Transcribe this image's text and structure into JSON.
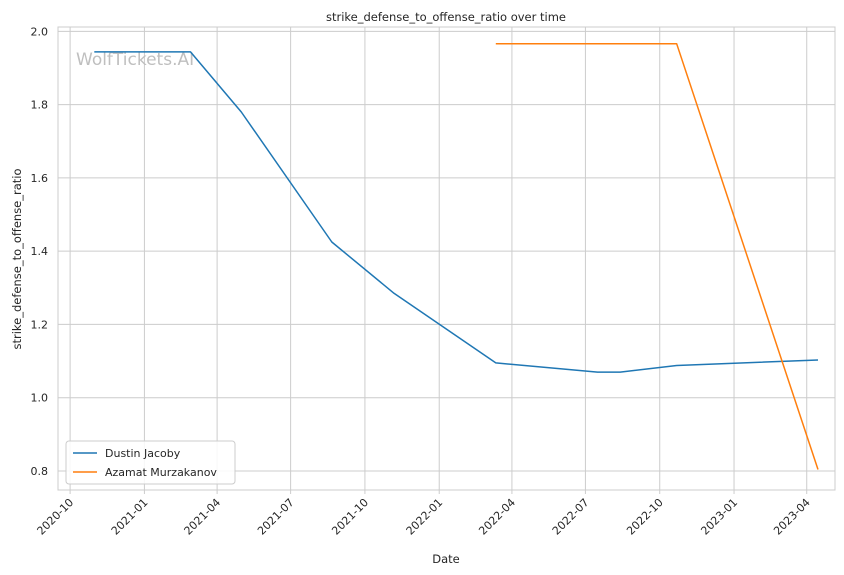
{
  "chart_data": {
    "type": "line",
    "title": "strike_defense_to_offense_ratio over time",
    "xlabel": "Date",
    "ylabel": "strike_defense_to_offense_ratio",
    "watermark": "WolfTickets.AI",
    "xlim": [
      "2020-09-16",
      "2023-05-06"
    ],
    "ylim": [
      0.748,
      2.012
    ],
    "grid": true,
    "legend_position": "lower-left",
    "x_ticks": [
      "2020-10",
      "2021-01",
      "2021-04",
      "2021-07",
      "2021-10",
      "2022-01",
      "2022-04",
      "2022-07",
      "2022-10",
      "2023-01",
      "2023-04"
    ],
    "y_ticks": [
      0.8,
      1.0,
      1.2,
      1.4,
      1.6,
      1.8,
      2.0
    ],
    "series": [
      {
        "name": "Dustin Jacoby",
        "color": "#1f77b4",
        "x": [
          "2020-10-31",
          "2021-02-27",
          "2021-05-01",
          "2021-08-21",
          "2021-11-06",
          "2022-03-12",
          "2022-07-16",
          "2022-08-13",
          "2022-10-22",
          "2023-04-15"
        ],
        "y": [
          1.944,
          1.944,
          1.78,
          1.425,
          1.285,
          1.095,
          1.07,
          1.07,
          1.088,
          1.103
        ]
      },
      {
        "name": "Azamat Murzakanov",
        "color": "#ff7f0e",
        "x": [
          "2022-03-12",
          "2022-10-22",
          "2023-04-15"
        ],
        "y": [
          1.966,
          1.966,
          0.804
        ]
      }
    ]
  }
}
